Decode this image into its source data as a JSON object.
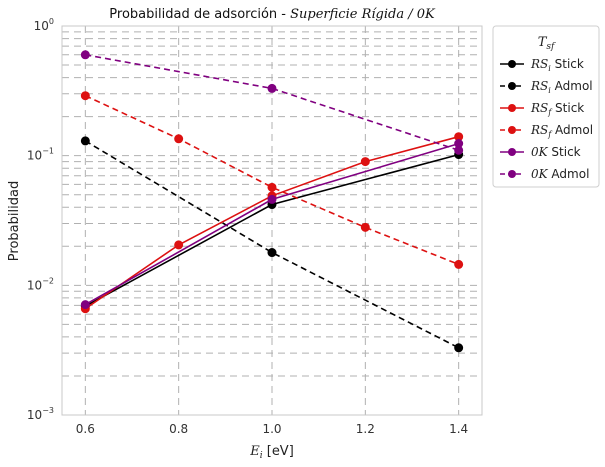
{
  "chart_data": {
    "type": "line",
    "title": "Probabilidad de adsorción - ",
    "title_math": "Superficie Rígida / 0K",
    "xlabel_math": "E",
    "xlabel_sub": "i",
    "xlabel_unit": " [eV]",
    "ylabel": "Probabilidad",
    "xlim": [
      0.55,
      1.45
    ],
    "ylim": [
      0.001,
      1
    ],
    "yscale": "log",
    "grid": true,
    "x_ticks": [
      0.6,
      0.8,
      1.0,
      1.2,
      1.4
    ],
    "x_tick_labels": [
      "0.6",
      "0.8",
      "1.0",
      "1.2",
      "1.4"
    ],
    "y_ticks": [
      {
        "value": 1,
        "base": "10",
        "exp": "0"
      },
      {
        "value": 0.1,
        "base": "10",
        "exp": "−1"
      },
      {
        "value": 0.01,
        "base": "10",
        "exp": "−2"
      },
      {
        "value": 0.001,
        "base": "10",
        "exp": "−3"
      }
    ],
    "legend": {
      "title_math": "T",
      "title_sub": "sf",
      "placement": "outside-right-top"
    },
    "series": [
      {
        "name_math": "RS",
        "name_sub": "i",
        "name_suffix": " Stick",
        "color": "#000000",
        "dash": "solid",
        "x": [
          0.6,
          1.0,
          1.4
        ],
        "values": [
          0.0069,
          0.042,
          0.102
        ]
      },
      {
        "name_math": "RS",
        "name_sub": "i",
        "name_suffix": " Admol",
        "color": "#000000",
        "dash": "dashed",
        "x": [
          0.6,
          1.0,
          1.4
        ],
        "values": [
          0.13,
          0.0179,
          0.0033
        ]
      },
      {
        "name_math": "RS",
        "name_sub": "f",
        "name_suffix": " Stick",
        "color": "#dd1111",
        "dash": "solid",
        "x": [
          0.6,
          0.8,
          1.0,
          1.2,
          1.4
        ],
        "values": [
          0.0066,
          0.0205,
          0.049,
          0.09,
          0.14
        ]
      },
      {
        "name_math": "RS",
        "name_sub": "f",
        "name_suffix": " Admol",
        "color": "#dd1111",
        "dash": "dashed",
        "x": [
          0.6,
          0.8,
          1.0,
          1.2,
          1.4
        ],
        "values": [
          0.29,
          0.135,
          0.057,
          0.028,
          0.0145
        ]
      },
      {
        "name_math": "0K",
        "name_sub": "",
        "name_suffix": " Stick",
        "color": "#800080",
        "dash": "solid",
        "x": [
          0.6,
          1.0,
          1.4
        ],
        "values": [
          0.0071,
          0.046,
          0.124
        ]
      },
      {
        "name_math": "0K",
        "name_sub": "",
        "name_suffix": " Admol",
        "color": "#800080",
        "dash": "dashed",
        "x": [
          0.6,
          1.0,
          1.4
        ],
        "values": [
          0.6,
          0.33,
          0.11
        ]
      }
    ]
  }
}
